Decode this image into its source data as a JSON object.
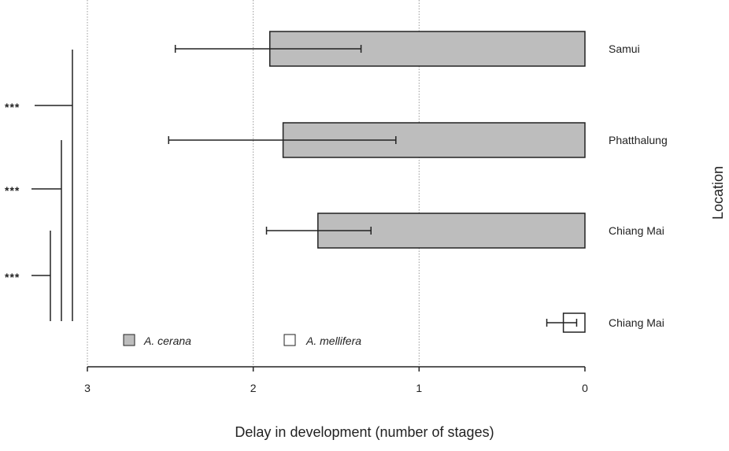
{
  "chart_data": {
    "type": "bar",
    "orientation": "horizontal",
    "x_reversed": true,
    "xlabel": "Delay in development (number of stages)",
    "ylabel": "Location",
    "xlim": [
      0,
      3
    ],
    "xticks": [
      "3",
      "2",
      "1",
      "0"
    ],
    "grid": "vertical dotted",
    "categories": [
      "Samui",
      "Phatthalung",
      "Chiang Mai",
      "Chiang Mai"
    ],
    "values": [
      1.9,
      1.82,
      1.61,
      0.13
    ],
    "error_low": [
      1.35,
      1.14,
      1.29,
      0.05
    ],
    "error_high": [
      2.47,
      2.51,
      1.92,
      0.23
    ],
    "species": [
      "A. cerana",
      "A. cerana",
      "A. cerana",
      "A. mellifera"
    ],
    "legend": [
      {
        "name": "A. cerana",
        "color": "#bdbdbd"
      },
      {
        "name": "A. mellifera",
        "color": "#ffffff"
      }
    ],
    "significance": [
      "***",
      "***",
      "***"
    ]
  },
  "colors": {
    "cerana_fill": "#bdbdbd",
    "mellifera_fill": "#ffffff",
    "stroke": "#222222",
    "grid": "#9a9a9a"
  }
}
